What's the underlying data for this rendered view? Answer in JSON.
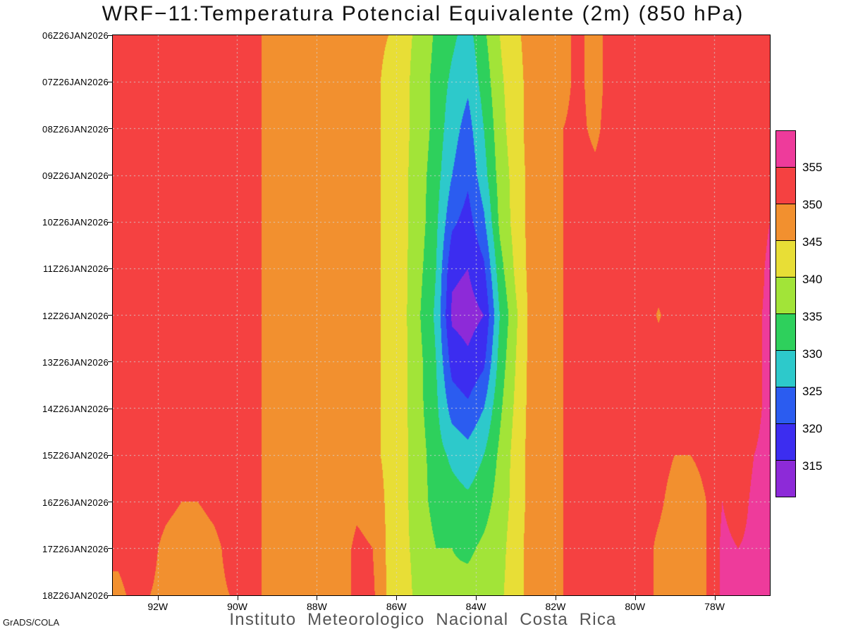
{
  "header": {
    "title": "WRF−11:Temperatura Potencial Equivalente (2m) (850 hPa)"
  },
  "footer": {
    "credit": "GrADS/COLA",
    "institution": "Instituto Meteorologico Nacional Costa Rica"
  },
  "chart_data": {
    "type": "heatmap",
    "subtype": "filled_contour_hovmoller",
    "title": "WRF−11:Temperatura Potencial Equivalente (2m) (850 hPa)",
    "legend_position": "right",
    "grid_on": true,
    "x_axis": {
      "label": "longitude",
      "range": [
        93.13,
        76.61
      ],
      "ticks": [
        {
          "label": "92W",
          "lon": 92
        },
        {
          "label": "90W",
          "lon": 90
        },
        {
          "label": "88W",
          "lon": 88
        },
        {
          "label": "86W",
          "lon": 86
        },
        {
          "label": "84W",
          "lon": 84
        },
        {
          "label": "82W",
          "lon": 82
        },
        {
          "label": "80W",
          "lon": 80
        },
        {
          "label": "78W",
          "lon": 78
        }
      ]
    },
    "y_axis": {
      "label": "time",
      "ticks": [
        "06Z26JAN2026",
        "07Z26JAN2026",
        "08Z26JAN2026",
        "09Z26JAN2026",
        "10Z26JAN2026",
        "11Z26JAN2026",
        "12Z26JAN2026",
        "13Z26JAN2026",
        "14Z26JAN2026",
        "15Z26JAN2026",
        "16Z26JAN2026",
        "17Z26JAN2026",
        "18Z26JAN2026"
      ]
    },
    "levels": [
      315,
      320,
      325,
      330,
      335,
      340,
      345,
      350,
      355
    ],
    "colorbar_labels": [
      "355",
      "350",
      "345",
      "340",
      "335",
      "330",
      "325",
      "320",
      "315"
    ],
    "palette": [
      "#8d2ad8",
      "#3c2df0",
      "#2b5cf0",
      "#2dc9cb",
      "#2ed05c",
      "#a2e438",
      "#e8de36",
      "#f2902f",
      "#f54141",
      "#ee3b9b"
    ],
    "grid": {
      "lons": [
        93.0,
        92.6,
        92.2,
        91.8,
        91.4,
        91.0,
        90.6,
        90.2,
        89.8,
        89.4,
        89.0,
        88.6,
        88.2,
        87.8,
        87.4,
        87.0,
        86.6,
        86.2,
        85.8,
        85.4,
        85.0,
        84.6,
        84.2,
        83.8,
        83.4,
        83.0,
        82.6,
        82.2,
        81.8,
        81.4,
        81.0,
        80.6,
        80.2,
        79.8,
        79.4,
        79.0,
        78.6,
        78.2,
        77.8,
        77.4,
        77.0,
        76.6
      ],
      "times": [
        "06Z",
        "07Z",
        "08Z",
        "09Z",
        "10Z",
        "11Z",
        "12Z",
        "13Z",
        "14Z",
        "15Z",
        "16Z",
        "17Z",
        "18Z"
      ],
      "values": [
        [
          352,
          352,
          352,
          352,
          352,
          352,
          352,
          352,
          352,
          350,
          348,
          347,
          350,
          348,
          347,
          347,
          346,
          345,
          341,
          339,
          334,
          331,
          328,
          334,
          340,
          344,
          347,
          348,
          349,
          351,
          348,
          352,
          352,
          352,
          352,
          352,
          352,
          352,
          352,
          352,
          352,
          352
        ],
        [
          352,
          352,
          352,
          352,
          352,
          352,
          352,
          352,
          352,
          350,
          348,
          347,
          349,
          348,
          347,
          347,
          346,
          344,
          341,
          338,
          333,
          329,
          326,
          332,
          339,
          343,
          347,
          348,
          349,
          351,
          348,
          352,
          352,
          352,
          352,
          352,
          352,
          352,
          352,
          352,
          352,
          352
        ],
        [
          352,
          352,
          352,
          352,
          352,
          352,
          352,
          352,
          352,
          350,
          348,
          347,
          347,
          347,
          347,
          347,
          346,
          344,
          341,
          338,
          333,
          327,
          323,
          330,
          338,
          343,
          347,
          348,
          350,
          351,
          349,
          352,
          352,
          352,
          352,
          352,
          352,
          352,
          352,
          352,
          352,
          353
        ],
        [
          352,
          352,
          352,
          352,
          352,
          352,
          352,
          352,
          352,
          350,
          348,
          347,
          347,
          347,
          347,
          347,
          346,
          344,
          341,
          337,
          332,
          325,
          321,
          328,
          337,
          342,
          347,
          348,
          350,
          352,
          351,
          352,
          352,
          352,
          352,
          352,
          352,
          352,
          352,
          352,
          352,
          353
        ],
        [
          352,
          352,
          352,
          352,
          352,
          352,
          352,
          352,
          352,
          350,
          348,
          347,
          347,
          347,
          347,
          347,
          346,
          344,
          341,
          337,
          331,
          321,
          318,
          324,
          336,
          342,
          347,
          348,
          350,
          352,
          352,
          352,
          352,
          352,
          352,
          352,
          352,
          352,
          352,
          352,
          353,
          355
        ],
        [
          352,
          352,
          352,
          352,
          352,
          352,
          352,
          352,
          352,
          350,
          348,
          347,
          347,
          347,
          347,
          347,
          346,
          344,
          341,
          336,
          330,
          316,
          315,
          319,
          333,
          341,
          347,
          348,
          350,
          352,
          352,
          352,
          352,
          352,
          352,
          352,
          352,
          352,
          352,
          352,
          353,
          356
        ],
        [
          352,
          352,
          352,
          352,
          352,
          352,
          352,
          352,
          352,
          350,
          348,
          347,
          347,
          347,
          347,
          347,
          346,
          344,
          341,
          335,
          329,
          314,
          313,
          315,
          330,
          339,
          347,
          348,
          350,
          352,
          352,
          352,
          352,
          352,
          349.6,
          352,
          352,
          352,
          352,
          352,
          354,
          356
        ],
        [
          352,
          352,
          352,
          352,
          352,
          352,
          352,
          352,
          352,
          350,
          348,
          347,
          347,
          347,
          347,
          347,
          346,
          344,
          341,
          336,
          330,
          318,
          316,
          319,
          332,
          340,
          347,
          348,
          350,
          352,
          352,
          352,
          352,
          352,
          352,
          352,
          352,
          352,
          352,
          352,
          354,
          356
        ],
        [
          352,
          352,
          352,
          352,
          352,
          352,
          352,
          352,
          352,
          350,
          348,
          347,
          347,
          347,
          347,
          347,
          346,
          344,
          341,
          336,
          331,
          323,
          321,
          325,
          334,
          341,
          347,
          348,
          350,
          352,
          352,
          352,
          352,
          352,
          352,
          352,
          352,
          352,
          352,
          352,
          354,
          356
        ],
        [
          352,
          352,
          352,
          352,
          352,
          352,
          352,
          352,
          352,
          350,
          348,
          347,
          347,
          347,
          347,
          347,
          346,
          344,
          341,
          337,
          332,
          329,
          327,
          330,
          336,
          342,
          347,
          348,
          350,
          352,
          352,
          352,
          352,
          352,
          352,
          350,
          350,
          351,
          354,
          352,
          355,
          356
        ],
        [
          352,
          352,
          352,
          351,
          350,
          350,
          351,
          352,
          352,
          350,
          348,
          347,
          347,
          347,
          347,
          349,
          348,
          344,
          341,
          337,
          333,
          332,
          331,
          333,
          337,
          342,
          347,
          348,
          350,
          352,
          352,
          352,
          352,
          352,
          351,
          348,
          348,
          350,
          355,
          353,
          356,
          357
        ],
        [
          351,
          352,
          351,
          349,
          348,
          348,
          349,
          351,
          352,
          350,
          348,
          347,
          347,
          347,
          348,
          351,
          350,
          344,
          341,
          338,
          335,
          335,
          334,
          336,
          338,
          343,
          347,
          348,
          350,
          352,
          352,
          352,
          352,
          352,
          349,
          347,
          347,
          350,
          356,
          355,
          356,
          357
        ],
        [
          349,
          351,
          350,
          349,
          348,
          348,
          349,
          350,
          352,
          350,
          348,
          347,
          347,
          347,
          348,
          351,
          351,
          344,
          342,
          338,
          335,
          336,
          337,
          338,
          339,
          343,
          347,
          348,
          350,
          352,
          352,
          352,
          352,
          352,
          349,
          347,
          347,
          350,
          356,
          355,
          356,
          357
        ]
      ]
    }
  }
}
